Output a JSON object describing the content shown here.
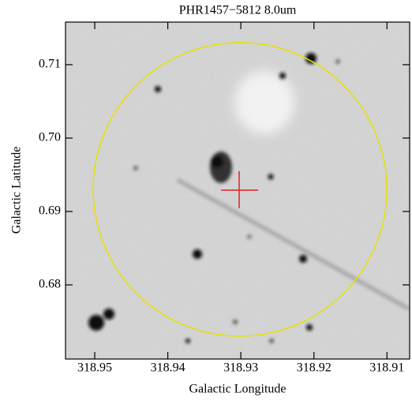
{
  "chart_data": {
    "type": "image",
    "title": "PHR1457−5812 8.0um",
    "xlabel": "Galactic Longitude",
    "ylabel": "Galactic Latitude",
    "xlim": [
      318.954,
      318.9069
    ],
    "ylim": [
      0.6699,
      0.7158
    ],
    "xticks": [
      318.95,
      318.94,
      318.93,
      318.92,
      318.91
    ],
    "yticks": [
      0.68,
      0.69,
      {
        "value": 0.7,
        "label": "0.70"
      },
      0.71
    ]
  }
}
